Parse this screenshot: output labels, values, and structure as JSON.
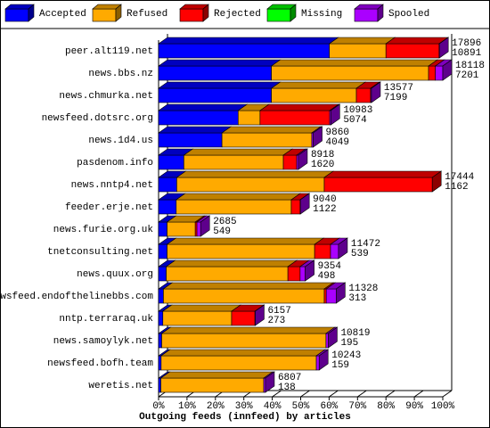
{
  "chart_data": {
    "type": "bar3d-stacked-horizontal",
    "title": "Outgoing feeds (innfeed) by articles",
    "categories": [
      "peer.alt119.net",
      "news.bbs.nz",
      "news.chmurka.net",
      "newsfeed.dotsrc.org",
      "news.1d4.us",
      "pasdenom.info",
      "news.nntp4.net",
      "feeder.erje.net",
      "news.furie.org.uk",
      "tnetconsulting.net",
      "news.quux.org",
      "newsfeed.endofthelinebbs.com",
      "nntp.terraraq.uk",
      "news.samoylyk.net",
      "newsfeed.bofh.team",
      "weretis.net"
    ],
    "series": [
      {
        "name": "Accepted",
        "color": "#0000ff",
        "values": [
          60.1,
          39.7,
          39.7,
          28.0,
          22.3,
          8.9,
          6.4,
          6.2,
          3.0,
          3.0,
          2.7,
          1.7,
          1.5,
          1.1,
          0.9,
          0.8
        ]
      },
      {
        "name": "Refused",
        "color": "#ffaa00",
        "values": [
          19.9,
          55.3,
          29.9,
          7.7,
          31.6,
          35.0,
          51.9,
          40.5,
          9.9,
          51.9,
          42.8,
          56.6,
          24.2,
          57.8,
          54.6,
          36.2
        ]
      },
      {
        "name": "Rejected",
        "color": "#ff0000",
        "values": [
          18.7,
          2.4,
          5.0,
          24.5,
          0,
          4.7,
          38.0,
          3.1,
          0.6,
          5.6,
          4.3,
          0.7,
          8.2,
          0,
          0,
          0
        ]
      },
      {
        "name": "Missing",
        "color": "#00ff00",
        "values": [
          0,
          0,
          0,
          0,
          0,
          0,
          0,
          0,
          0,
          0,
          0,
          0,
          0,
          0,
          0,
          0
        ]
      },
      {
        "name": "Spooled",
        "color": "#aa00ff",
        "values": [
          0.1,
          2.6,
          0.3,
          0.4,
          0.5,
          0.6,
          0,
          0.1,
          1.3,
          2.8,
          1.8,
          3.5,
          0.1,
          0.8,
          1.0,
          0.6
        ]
      }
    ],
    "row_labels": [
      [
        "17896",
        "10891"
      ],
      [
        "18118",
        "7201"
      ],
      [
        "13577",
        "7199"
      ],
      [
        "10983",
        "5074"
      ],
      [
        "9860",
        "4049"
      ],
      [
        "8918",
        "1620"
      ],
      [
        "17444",
        "1162"
      ],
      [
        "9040",
        "1122"
      ],
      [
        "2685",
        "549"
      ],
      [
        "11472",
        "539"
      ],
      [
        "9354",
        "498"
      ],
      [
        "11328",
        "313"
      ],
      [
        "6157",
        "273"
      ],
      [
        "10819",
        "195"
      ],
      [
        "10243",
        "159"
      ],
      [
        "6807",
        "138"
      ]
    ],
    "xlim": [
      0,
      100
    ],
    "xticks": [
      {
        "value": 0,
        "label": "0%"
      },
      {
        "value": 10,
        "label": "10%"
      },
      {
        "value": 20,
        "label": "20%"
      },
      {
        "value": 30,
        "label": "30%"
      },
      {
        "value": 40,
        "label": "40%"
      },
      {
        "value": 50,
        "label": "50%"
      },
      {
        "value": 60,
        "label": "60%"
      },
      {
        "value": 70,
        "label": "70%"
      },
      {
        "value": 80,
        "label": "80%"
      },
      {
        "value": 90,
        "label": "90%"
      },
      {
        "value": 100,
        "label": "100%"
      }
    ]
  }
}
